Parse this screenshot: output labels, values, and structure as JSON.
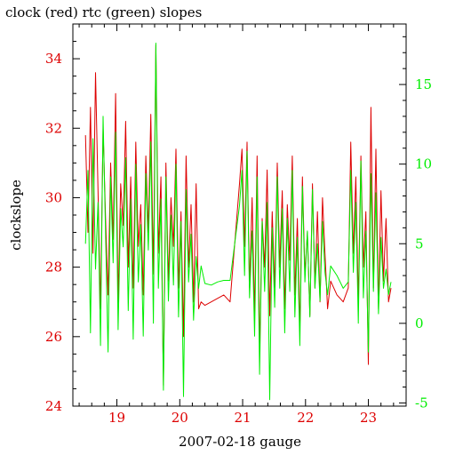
{
  "chart_data": {
    "type": "line",
    "title": "clock (red) rtc (green) slopes",
    "xlabel": "2007-02-18 gauge",
    "ylabel": "clockslope",
    "y2label": "",
    "xlim": [
      18.3,
      23.6
    ],
    "ylim": [
      24,
      35
    ],
    "y2lim": [
      -5.2,
      18.8
    ],
    "x_ticks": [
      19,
      20,
      21,
      22,
      23
    ],
    "y_ticks": [
      24,
      26,
      28,
      30,
      32,
      34
    ],
    "y2_ticks": [
      -5,
      0,
      5,
      10,
      15
    ],
    "grid": false,
    "legend": "none",
    "colors": {
      "clock": "#dd0000",
      "rtc": "#00ee00",
      "axes": "#000000"
    },
    "series": [
      {
        "name": "clock",
        "axis": "left",
        "color": "#dd0000",
        "x": [
          18.5,
          18.54,
          18.58,
          18.62,
          18.66,
          18.7,
          18.74,
          18.78,
          18.82,
          18.86,
          18.9,
          18.94,
          18.98,
          19.02,
          19.06,
          19.1,
          19.14,
          19.18,
          19.22,
          19.26,
          19.3,
          19.34,
          19.38,
          19.42,
          19.46,
          19.5,
          19.54,
          19.58,
          19.62,
          19.66,
          19.7,
          19.74,
          19.78,
          19.82,
          19.86,
          19.9,
          19.94,
          19.98,
          20.02,
          20.06,
          20.1,
          20.14,
          20.18,
          20.22,
          20.26,
          20.3,
          20.34,
          20.4,
          20.5,
          20.6,
          20.7,
          20.8,
          20.95,
          20.99,
          21.03,
          21.07,
          21.11,
          21.15,
          21.19,
          21.23,
          21.27,
          21.31,
          21.35,
          21.39,
          21.43,
          21.47,
          21.51,
          21.55,
          21.59,
          21.63,
          21.67,
          21.71,
          21.75,
          21.79,
          21.83,
          21.87,
          21.91,
          21.95,
          21.99,
          22.03,
          22.07,
          22.11,
          22.15,
          22.19,
          22.23,
          22.27,
          22.31,
          22.35,
          22.4,
          22.5,
          22.6,
          22.68,
          22.72,
          22.76,
          22.8,
          22.84,
          22.88,
          22.92,
          22.96,
          23.0,
          23.04,
          23.08,
          23.12,
          23.16,
          23.2,
          23.24,
          23.28,
          23.32,
          23.36
        ],
        "y": [
          31.8,
          29.0,
          32.6,
          28.4,
          33.6,
          30.2,
          26.8,
          32.0,
          29.4,
          27.2,
          31.0,
          28.8,
          33.0,
          27.0,
          30.4,
          29.2,
          32.2,
          28.0,
          30.6,
          27.4,
          31.6,
          28.6,
          29.8,
          27.2,
          31.2,
          29.0,
          32.4,
          27.8,
          34.4,
          28.4,
          30.6,
          24.6,
          31.0,
          27.6,
          30.0,
          28.6,
          31.4,
          27.4,
          29.6,
          26.0,
          31.2,
          28.0,
          29.8,
          27.0,
          30.4,
          26.8,
          27.0,
          26.9,
          27.0,
          27.1,
          27.2,
          27.0,
          30.4,
          31.4,
          28.6,
          31.6,
          27.4,
          30.0,
          26.6,
          31.2,
          25.6,
          29.4,
          28.0,
          30.8,
          26.6,
          29.6,
          27.4,
          31.0,
          28.0,
          30.2,
          26.8,
          29.8,
          28.2,
          31.2,
          27.2,
          29.4,
          26.2,
          30.6,
          27.8,
          29.0,
          26.6,
          30.4,
          27.4,
          29.6,
          27.0,
          30.0,
          28.4,
          26.8,
          27.6,
          27.2,
          27.0,
          27.4,
          31.6,
          28.4,
          30.6,
          27.0,
          31.2,
          28.0,
          29.6,
          25.2,
          32.6,
          27.4,
          31.4,
          26.8,
          30.2,
          27.6,
          29.4,
          27.0,
          27.4
        ]
      },
      {
        "name": "rtc",
        "axis": "right",
        "color": "#00ee00",
        "x": [
          18.5,
          18.54,
          18.58,
          18.62,
          18.66,
          18.7,
          18.74,
          18.78,
          18.82,
          18.86,
          18.9,
          18.94,
          18.98,
          19.02,
          19.06,
          19.1,
          19.14,
          19.18,
          19.22,
          19.26,
          19.3,
          19.34,
          19.38,
          19.42,
          19.46,
          19.5,
          19.54,
          19.58,
          19.62,
          19.66,
          19.7,
          19.74,
          19.78,
          19.82,
          19.86,
          19.9,
          19.94,
          19.98,
          20.02,
          20.06,
          20.1,
          20.14,
          20.18,
          20.22,
          20.26,
          20.3,
          20.34,
          20.4,
          20.5,
          20.6,
          20.7,
          20.8,
          20.95,
          20.99,
          21.03,
          21.07,
          21.11,
          21.15,
          21.19,
          21.23,
          21.27,
          21.31,
          21.35,
          21.39,
          21.43,
          21.47,
          21.51,
          21.55,
          21.59,
          21.63,
          21.67,
          21.71,
          21.75,
          21.79,
          21.83,
          21.87,
          21.91,
          21.95,
          21.99,
          22.03,
          22.07,
          22.11,
          22.15,
          22.19,
          22.23,
          22.27,
          22.31,
          22.35,
          22.4,
          22.5,
          22.6,
          22.68,
          22.72,
          22.76,
          22.8,
          22.84,
          22.88,
          22.92,
          22.96,
          23.0,
          23.04,
          23.08,
          23.12,
          23.16,
          23.2,
          23.24,
          23.28,
          23.32,
          23.36
        ],
        "y": [
          5.0,
          9.6,
          -0.6,
          11.6,
          3.4,
          7.6,
          -1.4,
          13.0,
          5.6,
          -1.8,
          9.2,
          3.8,
          12.0,
          -0.4,
          7.2,
          4.8,
          10.4,
          0.8,
          7.8,
          -1.0,
          10.0,
          2.6,
          6.2,
          -0.8,
          9.4,
          4.6,
          11.4,
          0.0,
          17.6,
          2.2,
          7.8,
          -4.2,
          9.2,
          1.4,
          6.8,
          2.4,
          10.0,
          0.4,
          6.4,
          -4.6,
          8.4,
          2.6,
          5.6,
          0.2,
          4.2,
          2.2,
          3.6,
          2.5,
          2.4,
          2.6,
          2.7,
          2.7,
          7.4,
          9.6,
          3.0,
          10.8,
          1.6,
          5.8,
          -0.8,
          9.2,
          -3.2,
          6.4,
          2.0,
          7.6,
          -4.8,
          6.0,
          1.0,
          9.2,
          2.2,
          7.2,
          -0.6,
          6.6,
          2.0,
          9.6,
          0.4,
          5.4,
          -1.4,
          8.6,
          2.6,
          5.8,
          0.4,
          8.4,
          2.2,
          5.0,
          1.4,
          6.4,
          3.2,
          1.8,
          3.6,
          3.0,
          2.2,
          2.6,
          9.6,
          3.2,
          7.6,
          0.0,
          10.2,
          1.6,
          5.8,
          -1.8,
          9.4,
          2.0,
          8.2,
          0.6,
          5.4,
          2.2,
          3.4,
          1.8,
          2.6
        ]
      }
    ]
  }
}
